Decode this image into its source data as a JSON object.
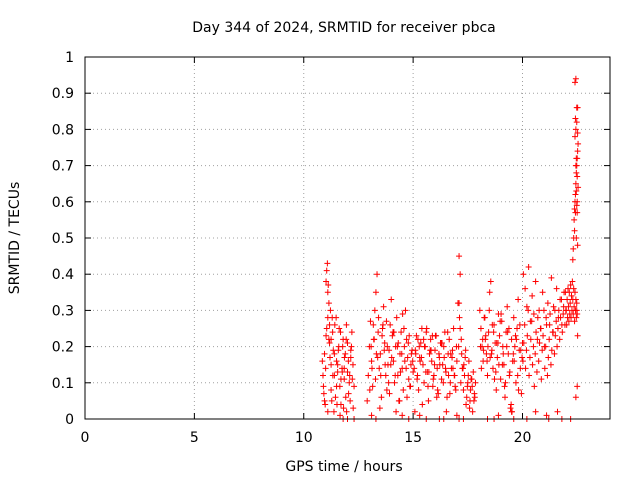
{
  "chart_data": {
    "type": "scatter",
    "title": "Day 344 of 2024, SRMTID for receiver pbca",
    "xlabel": "GPS time / hours",
    "ylabel": "SRMTID / TECUs",
    "xlim": [
      0,
      24
    ],
    "ylim": [
      0,
      1
    ],
    "xticks": [
      0,
      5,
      10,
      15,
      20
    ],
    "yticks": [
      0,
      0.1,
      0.2,
      0.3,
      0.4,
      0.5,
      0.6,
      0.7,
      0.8,
      0.9,
      1
    ],
    "ytick_labels": [
      "0",
      "0.1",
      "0.2",
      "0.3",
      "0.4",
      "0.5",
      "0.6",
      "0.7",
      "0.8",
      "0.9",
      "1"
    ],
    "grid": true,
    "marker": "+",
    "color": "#ff0000",
    "series": [
      {
        "name": "SRMTID",
        "x": [
          10.85,
          10.9,
          10.95,
          11.0,
          11.05,
          11.1,
          11.15,
          11.2,
          11.25,
          11.3,
          11.35,
          11.4,
          11.45,
          11.5,
          11.55,
          11.6,
          11.65,
          11.7,
          11.75,
          11.8,
          11.85,
          11.9,
          11.95,
          12.0,
          12.05,
          12.1,
          12.15,
          12.2,
          12.25,
          12.3,
          11.02,
          11.05,
          11.08,
          11.12,
          11.15,
          11.18,
          11.22,
          11.25,
          11.32,
          11.4,
          11.48,
          11.55,
          11.62,
          11.7,
          11.78,
          11.85,
          11.92,
          12.0,
          12.08,
          12.15,
          10.88,
          10.92,
          10.98,
          11.1,
          11.28,
          11.38,
          11.52,
          11.66,
          11.82,
          11.96,
          12.12,
          12.26,
          10.95,
          11.02,
          11.1,
          11.18,
          11.25,
          11.33,
          11.42,
          11.5,
          11.58,
          11.68,
          11.76,
          11.86,
          11.94,
          12.04,
          12.18,
          12.22,
          12.9,
          12.95,
          13.0,
          13.05,
          13.1,
          13.15,
          13.2,
          13.25,
          13.3,
          13.35,
          13.4,
          13.45,
          13.5,
          13.55,
          13.6,
          13.65,
          13.7,
          13.75,
          13.8,
          13.85,
          13.9,
          13.95,
          14.0,
          14.05,
          14.1,
          14.15,
          14.2,
          14.25,
          14.3,
          14.35,
          14.4,
          14.45,
          14.5,
          14.55,
          14.6,
          14.65,
          14.7,
          14.75,
          14.8,
          14.85,
          14.9,
          14.95,
          15.0,
          13.02,
          13.12,
          13.22,
          13.32,
          13.42,
          13.52,
          13.62,
          13.72,
          13.82,
          13.92,
          14.02,
          14.12,
          14.22,
          14.32,
          14.42,
          14.52,
          14.62,
          14.72,
          14.82,
          14.92,
          13.08,
          13.18,
          13.28,
          13.38,
          13.48,
          13.58,
          13.68,
          13.78,
          13.88,
          13.98,
          14.08,
          14.18,
          14.28,
          14.38,
          14.48,
          14.58,
          14.68,
          14.78,
          14.88,
          14.98,
          15.05,
          15.1,
          15.15,
          15.2,
          15.25,
          15.3,
          15.35,
          15.4,
          15.45,
          15.5,
          15.55,
          15.6,
          15.65,
          15.7,
          15.75,
          15.8,
          15.85,
          15.9,
          15.95,
          16.0,
          16.05,
          16.1,
          16.15,
          16.2,
          16.25,
          16.3,
          16.35,
          16.4,
          16.45,
          16.5,
          16.55,
          16.6,
          16.65,
          16.7,
          16.75,
          16.8,
          16.85,
          16.9,
          16.95,
          17.0,
          15.08,
          15.18,
          15.28,
          15.38,
          15.48,
          15.58,
          15.68,
          15.78,
          15.88,
          15.98,
          16.08,
          16.18,
          16.28,
          16.38,
          16.48,
          16.58,
          16.68,
          16.78,
          16.88,
          16.98,
          15.12,
          15.22,
          15.32,
          15.42,
          15.52,
          15.62,
          15.72,
          15.82,
          15.92,
          16.02,
          16.12,
          16.22,
          16.32,
          16.42,
          16.52,
          16.62,
          16.72,
          16.82,
          16.92,
          17.05,
          17.1,
          17.15,
          17.2,
          17.25,
          17.3,
          17.35,
          17.4,
          17.45,
          17.5,
          17.55,
          17.6,
          17.65,
          17.7,
          17.75,
          17.8,
          17.85,
          17.12,
          17.22,
          17.32,
          17.42,
          17.52,
          17.62,
          17.72,
          17.82,
          17.08,
          17.18,
          17.28,
          17.38,
          17.48,
          17.58,
          17.68,
          17.78,
          17.1,
          17.15,
          18.05,
          18.1,
          18.15,
          18.2,
          18.25,
          18.3,
          18.35,
          18.4,
          18.45,
          18.5,
          18.55,
          18.6,
          18.65,
          18.7,
          18.75,
          18.8,
          18.85,
          18.9,
          18.95,
          19.0,
          19.05,
          19.1,
          19.15,
          19.2,
          19.25,
          19.3,
          19.35,
          19.4,
          19.45,
          19.5,
          19.55,
          19.6,
          19.65,
          19.7,
          19.75,
          19.8,
          19.85,
          19.9,
          19.95,
          20.0,
          18.08,
          18.18,
          18.28,
          18.38,
          18.48,
          18.58,
          18.68,
          18.78,
          18.88,
          18.98,
          19.08,
          19.18,
          19.28,
          19.38,
          19.48,
          19.58,
          19.68,
          19.78,
          19.88,
          19.98,
          18.12,
          18.22,
          18.32,
          18.42,
          18.52,
          18.62,
          18.72,
          18.82,
          18.92,
          19.02,
          19.12,
          19.22,
          19.32,
          19.42,
          19.52,
          19.62,
          19.72,
          19.82,
          19.92,
          20.02,
          20.06,
          20.1,
          20.14,
          20.18,
          20.22,
          20.26,
          20.3,
          20.34,
          20.38,
          20.42,
          20.46,
          20.5,
          20.54,
          20.58,
          20.62,
          20.66,
          20.7,
          20.74,
          20.78,
          20.82,
          20.86,
          20.9,
          20.94,
          20.98,
          21.02,
          21.06,
          21.1,
          21.14,
          21.18,
          21.22,
          21.26,
          21.3,
          21.34,
          21.38,
          21.42,
          21.46,
          21.5,
          21.54,
          21.58,
          21.62,
          21.66,
          21.7,
          21.74,
          21.78,
          21.82,
          21.86,
          21.9,
          21.94,
          21.98,
          20.04,
          20.12,
          20.2,
          20.28,
          20.36,
          20.44,
          20.52,
          20.6,
          20.68,
          20.76,
          20.84,
          20.92,
          21.0,
          21.08,
          21.16,
          21.24,
          21.32,
          21.4,
          21.48,
          21.56,
          21.64,
          21.72,
          21.8,
          21.88,
          21.96,
          22.0,
          22.02,
          22.04,
          22.06,
          22.08,
          22.1,
          22.12,
          22.14,
          22.16,
          22.18,
          22.2,
          22.22,
          22.24,
          22.26,
          22.28,
          22.3,
          22.32,
          22.34,
          22.36,
          22.38,
          22.4,
          22.42,
          22.44,
          22.46,
          22.48,
          22.5,
          22.3,
          22.32,
          22.34,
          22.36,
          22.38,
          22.4,
          22.42,
          22.44,
          22.46,
          22.48,
          22.5,
          22.52,
          22.54,
          22.38,
          22.42,
          22.46,
          22.5,
          22.4,
          22.44,
          22.48,
          22.52,
          22.4,
          22.44,
          22.48,
          22.52,
          22.42,
          22.46,
          22.5,
          22.54,
          22.44,
          22.48,
          22.52,
          22.46,
          22.5,
          22.48,
          22.52,
          22.44,
          22.5,
          11.8,
          12.0,
          12.3,
          13.3,
          14.8,
          15.6,
          16.2,
          17.1,
          17.3,
          18.4,
          18.7,
          19.6,
          20.2,
          21.2,
          21.8,
          22.2,
          13.1,
          14.5,
          15.3,
          16.4,
          17.0,
          18.9,
          19.5,
          20.6,
          21.1,
          21.6
        ],
        "y": [
          0.16,
          0.09,
          0.05,
          0.14,
          0.25,
          0.35,
          0.22,
          0.17,
          0.08,
          0.28,
          0.19,
          0.12,
          0.06,
          0.16,
          0.13,
          0.2,
          0.09,
          0.04,
          0.14,
          0.22,
          0.11,
          0.18,
          0.26,
          0.13,
          0.07,
          0.12,
          0.19,
          0.24,
          0.15,
          0.09,
          0.38,
          0.41,
          0.43,
          0.37,
          0.32,
          0.26,
          0.3,
          0.22,
          0.24,
          0.18,
          0.28,
          0.15,
          0.25,
          0.11,
          0.2,
          0.14,
          0.06,
          0.21,
          0.1,
          0.17,
          0.12,
          0.07,
          0.04,
          0.02,
          0.05,
          0.02,
          0.04,
          0.01,
          0.03,
          0.02,
          0.05,
          0.03,
          0.18,
          0.23,
          0.28,
          0.21,
          0.15,
          0.12,
          0.26,
          0.09,
          0.19,
          0.24,
          0.13,
          0.17,
          0.22,
          0.16,
          0.2,
          0.11,
          0.05,
          0.12,
          0.2,
          0.27,
          0.16,
          0.09,
          0.22,
          0.3,
          0.35,
          0.4,
          0.24,
          0.14,
          0.18,
          0.06,
          0.25,
          0.31,
          0.21,
          0.12,
          0.08,
          0.15,
          0.19,
          0.26,
          0.33,
          0.23,
          0.16,
          0.1,
          0.2,
          0.28,
          0.12,
          0.05,
          0.18,
          0.24,
          0.14,
          0.08,
          0.2,
          0.3,
          0.22,
          0.17,
          0.11,
          0.09,
          0.15,
          0.19,
          0.13,
          0.08,
          0.14,
          0.22,
          0.18,
          0.28,
          0.12,
          0.26,
          0.15,
          0.2,
          0.07,
          0.17,
          0.24,
          0.02,
          0.21,
          0.13,
          0.29,
          0.16,
          0.06,
          0.23,
          0.18,
          0.2,
          0.26,
          0.11,
          0.17,
          0.03,
          0.23,
          0.19,
          0.27,
          0.1,
          0.15,
          0.24,
          0.12,
          0.2,
          0.05,
          0.18,
          0.25,
          0.14,
          0.21,
          0.09,
          0.16,
          0.14,
          0.19,
          0.23,
          0.12,
          0.08,
          0.17,
          0.21,
          0.25,
          0.15,
          0.1,
          0.2,
          0.24,
          0.13,
          0.05,
          0.18,
          0.22,
          0.16,
          0.09,
          0.12,
          0.19,
          0.23,
          0.14,
          0.07,
          0.17,
          0.21,
          0.11,
          0.15,
          0.2,
          0.24,
          0.13,
          0.06,
          0.18,
          0.22,
          0.1,
          0.14,
          0.19,
          0.25,
          0.12,
          0.08,
          0.16,
          0.02,
          0.11,
          0.2,
          0.17,
          0.22,
          0.13,
          0.09,
          0.19,
          0.23,
          0.15,
          0.06,
          0.18,
          0.21,
          0.1,
          0.14,
          0.24,
          0.07,
          0.17,
          0.12,
          0.2,
          0.18,
          0.22,
          0.16,
          0.04,
          0.2,
          0.25,
          0.13,
          0.19,
          0.11,
          0.23,
          0.08,
          0.15,
          0.21,
          0.17,
          0.02,
          0.12,
          0.18,
          0.14,
          0.09,
          0.32,
          0.45,
          0.4,
          0.22,
          0.14,
          0.08,
          0.12,
          0.19,
          0.06,
          0.1,
          0.16,
          0.05,
          0.11,
          0.09,
          0.13,
          0.07,
          0.1,
          0.28,
          0.18,
          0.15,
          0.04,
          0.12,
          0.08,
          0.02,
          0.06,
          0.2,
          0.1,
          0.14,
          0.17,
          0.09,
          0.03,
          0.11,
          0.05,
          0.32,
          0.25,
          0.3,
          0.25,
          0.2,
          0.16,
          0.28,
          0.22,
          0.18,
          0.12,
          0.24,
          0.35,
          0.38,
          0.19,
          0.14,
          0.26,
          0.21,
          0.08,
          0.17,
          0.29,
          0.23,
          0.11,
          0.27,
          0.2,
          0.15,
          0.06,
          0.24,
          0.31,
          0.18,
          0.12,
          0.03,
          0.22,
          0.16,
          0.28,
          0.2,
          0.1,
          0.25,
          0.33,
          0.19,
          0.14,
          0.07,
          0.21,
          0.2,
          0.22,
          0.28,
          0.16,
          0.3,
          0.18,
          0.24,
          0.13,
          0.21,
          0.27,
          0.15,
          0.09,
          0.2,
          0.25,
          0.04,
          0.18,
          0.23,
          0.12,
          0.26,
          0.17,
          0.14,
          0.19,
          0.23,
          0.2,
          0.17,
          0.26,
          0.11,
          0.21,
          0.15,
          0.29,
          0.18,
          0.1,
          0.24,
          0.13,
          0.02,
          0.16,
          0.22,
          0.08,
          0.19,
          0.16,
          0.21,
          0.26,
          0.14,
          0.19,
          0.23,
          0.3,
          0.12,
          0.17,
          0.22,
          0.27,
          0.15,
          0.2,
          0.09,
          0.18,
          0.24,
          0.13,
          0.28,
          0.16,
          0.21,
          0.25,
          0.11,
          0.19,
          0.23,
          0.3,
          0.14,
          0.2,
          0.26,
          0.12,
          0.17,
          0.22,
          0.29,
          0.15,
          0.19,
          0.24,
          0.31,
          0.18,
          0.23,
          0.27,
          0.2,
          0.25,
          0.3,
          0.22,
          0.28,
          0.33,
          0.24,
          0.29,
          0.35,
          0.26,
          0.3,
          0.4,
          0.36,
          0.31,
          0.42,
          0.27,
          0.34,
          0.29,
          0.38,
          0.22,
          0.3,
          0.25,
          0.35,
          0.2,
          0.28,
          0.32,
          0.26,
          0.39,
          0.24,
          0.3,
          0.36,
          0.28,
          0.33,
          0.26,
          0.31,
          0.35,
          0.3,
          0.26,
          0.33,
          0.28,
          0.36,
          0.31,
          0.27,
          0.35,
          0.29,
          0.32,
          0.37,
          0.28,
          0.34,
          0.3,
          0.38,
          0.33,
          0.29,
          0.36,
          0.31,
          0.27,
          0.35,
          0.3,
          0.33,
          0.28,
          0.32,
          0.29,
          0.44,
          0.47,
          0.5,
          0.55,
          0.58,
          0.6,
          0.62,
          0.65,
          0.68,
          0.7,
          0.72,
          0.74,
          0.76,
          0.52,
          0.57,
          0.63,
          0.67,
          0.78,
          0.8,
          0.82,
          0.86,
          0.93,
          0.94,
          0.86,
          0.79,
          0.83,
          0.72,
          0.6,
          0.64,
          0.7,
          0.59,
          0.48,
          0.5,
          0.57,
          0.3,
          0.23,
          0.06,
          0.09,
          0.0,
          0.0,
          0.0,
          0.0,
          0.0,
          0.0,
          0.0,
          0.0,
          0.0,
          0.0,
          0.0,
          0.0,
          0.0,
          0.0,
          0.0,
          0.0,
          0.01,
          0.01,
          0.01,
          0.0,
          0.01,
          0.01,
          0.02,
          0.02,
          0.01,
          0.02
        ]
      }
    ]
  }
}
